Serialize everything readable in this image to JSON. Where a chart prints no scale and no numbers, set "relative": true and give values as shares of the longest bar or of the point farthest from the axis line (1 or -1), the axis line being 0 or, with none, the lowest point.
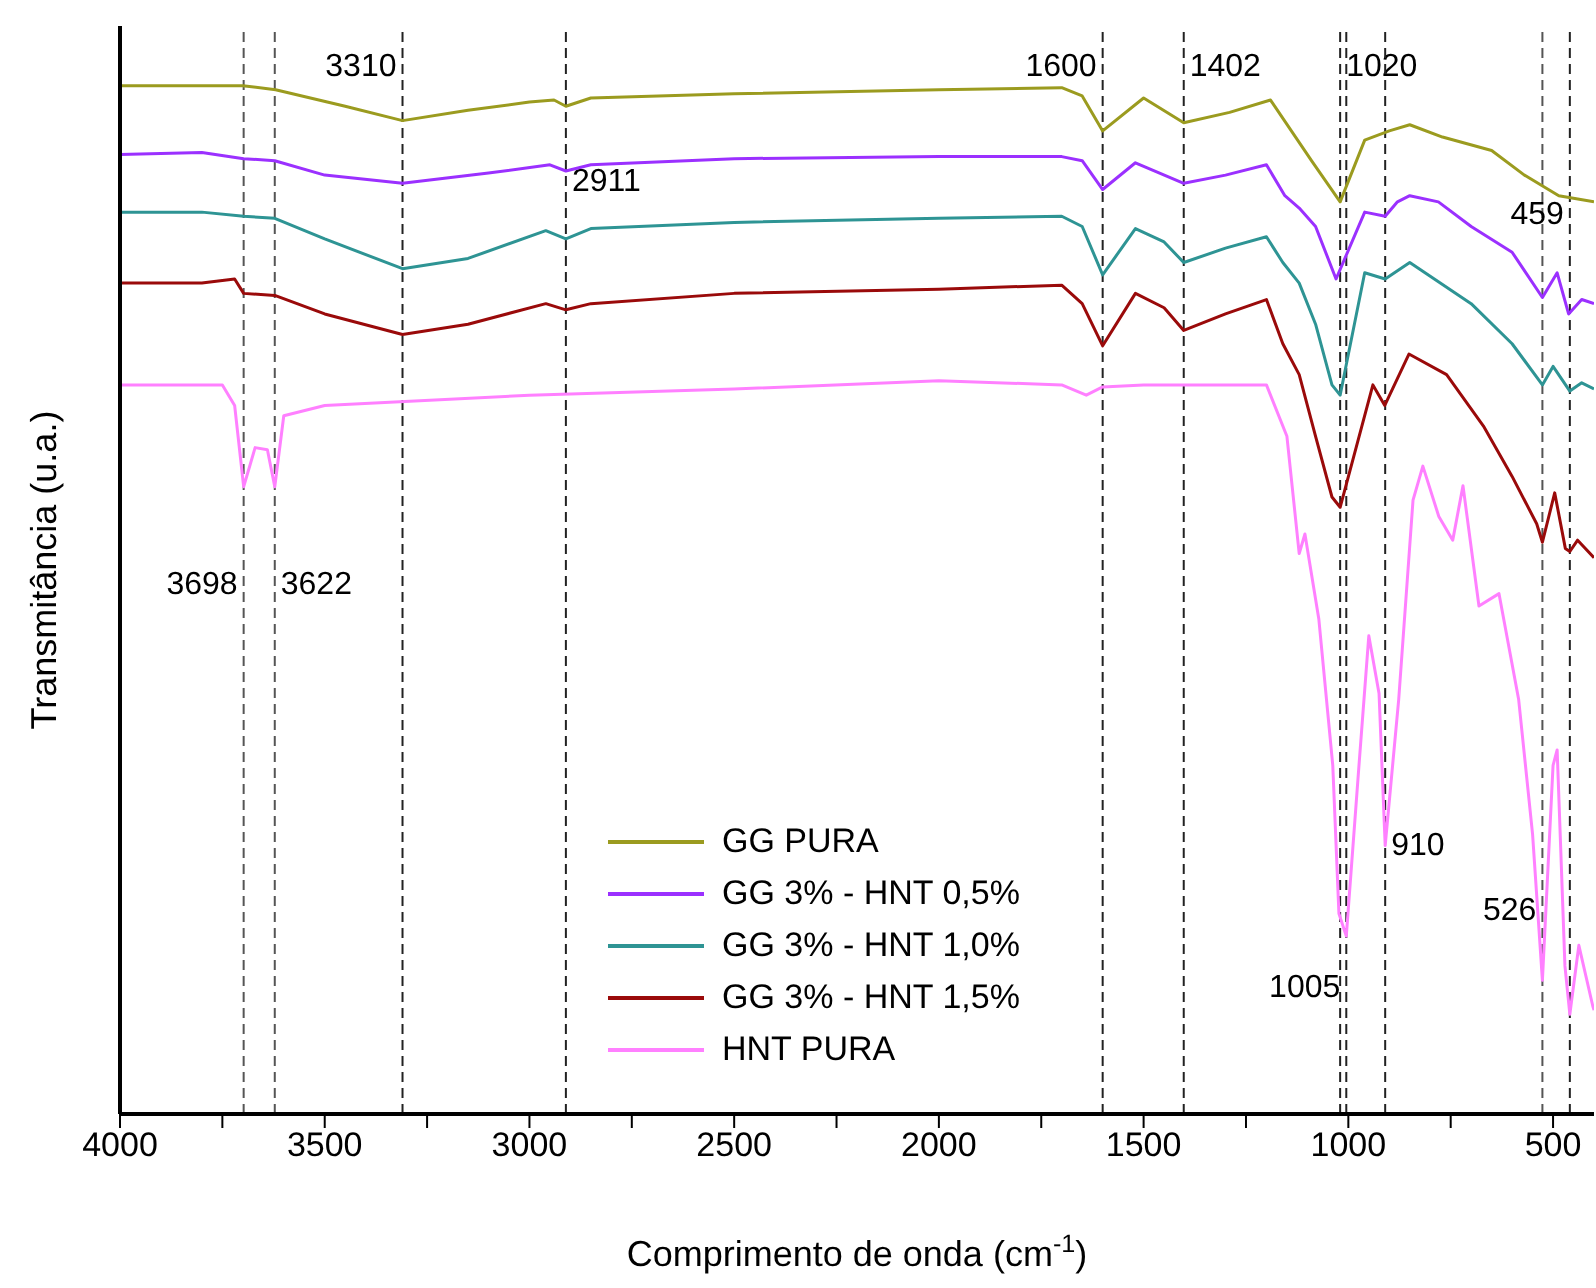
{
  "chart_data": {
    "type": "line",
    "relative": true,
    "xlabel": "Comprimento de onda (cm$^{-1}$)",
    "ylabel": "Transmitância (u.a.)",
    "xlim": [
      4000,
      400
    ],
    "xticks": [
      4000,
      {
        "value": 3750,
        "label": null
      },
      3500,
      {
        "value": 3250,
        "label": null
      },
      3000,
      {
        "value": 2750,
        "label": null
      },
      2500,
      {
        "value": 2250,
        "label": null
      },
      2000,
      {
        "value": 1750,
        "label": null
      },
      1500,
      {
        "value": 1250,
        "label": null
      },
      1000,
      {
        "value": 750,
        "label": null
      },
      500
    ],
    "legend": "bottom",
    "series": [
      {
        "name": "GG PURA",
        "color": "#9b9b1f",
        "x": [
          4000,
          3700,
          3620,
          3450,
          3310,
          3150,
          3000,
          2940,
          2911,
          2850,
          2500,
          2000,
          1700,
          1650,
          1600,
          1500,
          1402,
          1290,
          1190,
          1090,
          1020,
          960,
          900,
          850,
          770,
          650,
          570,
          486,
          400
        ],
        "values": [
          1.0,
          1.0,
          0.996,
          0.98,
          0.966,
          0.976,
          0.984,
          0.986,
          0.98,
          0.988,
          0.992,
          0.996,
          0.998,
          0.99,
          0.956,
          0.988,
          0.964,
          0.974,
          0.986,
          0.927,
          0.887,
          0.947,
          0.956,
          0.962,
          0.95,
          0.937,
          0.913,
          0.893,
          0.887
        ]
      },
      {
        "name": "GG 3% - HNT 0,5%",
        "color": "#9b30ff",
        "x": [
          4000,
          3800,
          3698,
          3622,
          3500,
          3310,
          3100,
          2950,
          2911,
          2850,
          2500,
          2000,
          1700,
          1650,
          1600,
          1520,
          1402,
          1300,
          1200,
          1155,
          1120,
          1080,
          1030,
          960,
          910,
          880,
          850,
          780,
          700,
          600,
          526,
          490,
          462,
          430,
          400
        ],
        "values": [
          0.933,
          0.935,
          0.929,
          0.927,
          0.913,
          0.905,
          0.915,
          0.923,
          0.917,
          0.923,
          0.929,
          0.931,
          0.931,
          0.927,
          0.899,
          0.925,
          0.905,
          0.913,
          0.923,
          0.893,
          0.881,
          0.863,
          0.812,
          0.877,
          0.873,
          0.887,
          0.893,
          0.887,
          0.863,
          0.838,
          0.794,
          0.818,
          0.778,
          0.792,
          0.788
        ]
      },
      {
        "name": "GG 3% - HNT 1,0%",
        "color": "#2e9494",
        "x": [
          4000,
          3800,
          3698,
          3622,
          3500,
          3310,
          3150,
          2960,
          2911,
          2850,
          2500,
          2000,
          1700,
          1650,
          1600,
          1520,
          1450,
          1402,
          1300,
          1200,
          1160,
          1120,
          1080,
          1040,
          1020,
          960,
          910,
          850,
          700,
          600,
          526,
          500,
          459,
          430,
          400
        ],
        "values": [
          0.877,
          0.877,
          0.873,
          0.871,
          0.851,
          0.822,
          0.832,
          0.859,
          0.851,
          0.861,
          0.867,
          0.871,
          0.873,
          0.863,
          0.816,
          0.861,
          0.848,
          0.828,
          0.842,
          0.853,
          0.828,
          0.808,
          0.768,
          0.709,
          0.699,
          0.818,
          0.812,
          0.828,
          0.788,
          0.749,
          0.709,
          0.727,
          0.703,
          0.711,
          0.705
        ]
      },
      {
        "name": "GG 3% - HNT 1,5%",
        "color": "#9a0a0a",
        "x": [
          4000,
          3800,
          3720,
          3698,
          3622,
          3500,
          3310,
          3150,
          2960,
          2911,
          2850,
          2500,
          2000,
          1700,
          1650,
          1600,
          1520,
          1450,
          1402,
          1300,
          1200,
          1160,
          1120,
          1080,
          1040,
          1020,
          940,
          911,
          852,
          760,
          670,
          600,
          540,
          526,
          496,
          470,
          459,
          440,
          400
        ],
        "values": [
          0.808,
          0.808,
          0.812,
          0.798,
          0.796,
          0.778,
          0.758,
          0.768,
          0.788,
          0.782,
          0.788,
          0.798,
          0.802,
          0.806,
          0.788,
          0.747,
          0.798,
          0.784,
          0.762,
          0.778,
          0.792,
          0.749,
          0.719,
          0.659,
          0.6,
          0.59,
          0.709,
          0.689,
          0.739,
          0.719,
          0.669,
          0.62,
          0.574,
          0.556,
          0.604,
          0.55,
          0.547,
          0.558,
          0.541
        ]
      },
      {
        "name": "HNT PURA",
        "color": "#ff80ff",
        "x": [
          4000,
          3750,
          3720,
          3698,
          3670,
          3640,
          3622,
          3600,
          3500,
          3000,
          2500,
          2000,
          1700,
          1640,
          1600,
          1500,
          1200,
          1150,
          1120,
          1106,
          1072,
          1038,
          1023,
          1005,
          974,
          950,
          925,
          910,
          877,
          842,
          818,
          779,
          745,
          720,
          681,
          632,
          584,
          550,
          526,
          500,
          490,
          471,
          459,
          437,
          403,
          400
        ],
        "values": [
          0.709,
          0.709,
          0.689,
          0.61,
          0.648,
          0.646,
          0.61,
          0.679,
          0.689,
          0.699,
          0.705,
          0.713,
          0.709,
          0.699,
          0.707,
          0.709,
          0.709,
          0.659,
          0.545,
          0.564,
          0.481,
          0.339,
          0.195,
          0.173,
          0.339,
          0.465,
          0.409,
          0.261,
          0.403,
          0.597,
          0.63,
          0.581,
          0.558,
          0.611,
          0.494,
          0.506,
          0.403,
          0.272,
          0.13,
          0.339,
          0.354,
          0.144,
          0.097,
          0.164,
          0.105,
          0.101
        ]
      }
    ],
    "ref_lines": [
      {
        "axis": "x",
        "value": 3698,
        "label": "3698",
        "line_style": "dashed",
        "color": "#555555"
      },
      {
        "axis": "x",
        "value": 3622,
        "label": "3622",
        "line_style": "dashed",
        "color": "#555555"
      },
      {
        "axis": "x",
        "value": 3310,
        "label": "3310",
        "line_style": "dashed",
        "color": "#222222"
      },
      {
        "axis": "x",
        "value": 2911,
        "label": "2911",
        "line_style": "dashed",
        "color": "#222222"
      },
      {
        "axis": "x",
        "value": 1600,
        "label": "1600",
        "line_style": "dashed",
        "color": "#222222"
      },
      {
        "axis": "x",
        "value": 1402,
        "label": "1402",
        "line_style": "dashed",
        "color": "#222222"
      },
      {
        "axis": "x",
        "value": 1020,
        "label": "1020",
        "line_style": "dashed",
        "color": "#222222"
      },
      {
        "axis": "x",
        "value": 1005,
        "label": "1005",
        "line_style": "dashed",
        "color": "#222222"
      },
      {
        "axis": "x",
        "value": 910,
        "label": "910",
        "line_style": "dashed",
        "color": "#222222"
      },
      {
        "axis": "x",
        "value": 526,
        "label": "526",
        "line_style": "dashed",
        "color": "#555555"
      },
      {
        "axis": "x",
        "value": 459,
        "label": "459",
        "line_style": "dashed",
        "color": "#222222"
      }
    ]
  }
}
